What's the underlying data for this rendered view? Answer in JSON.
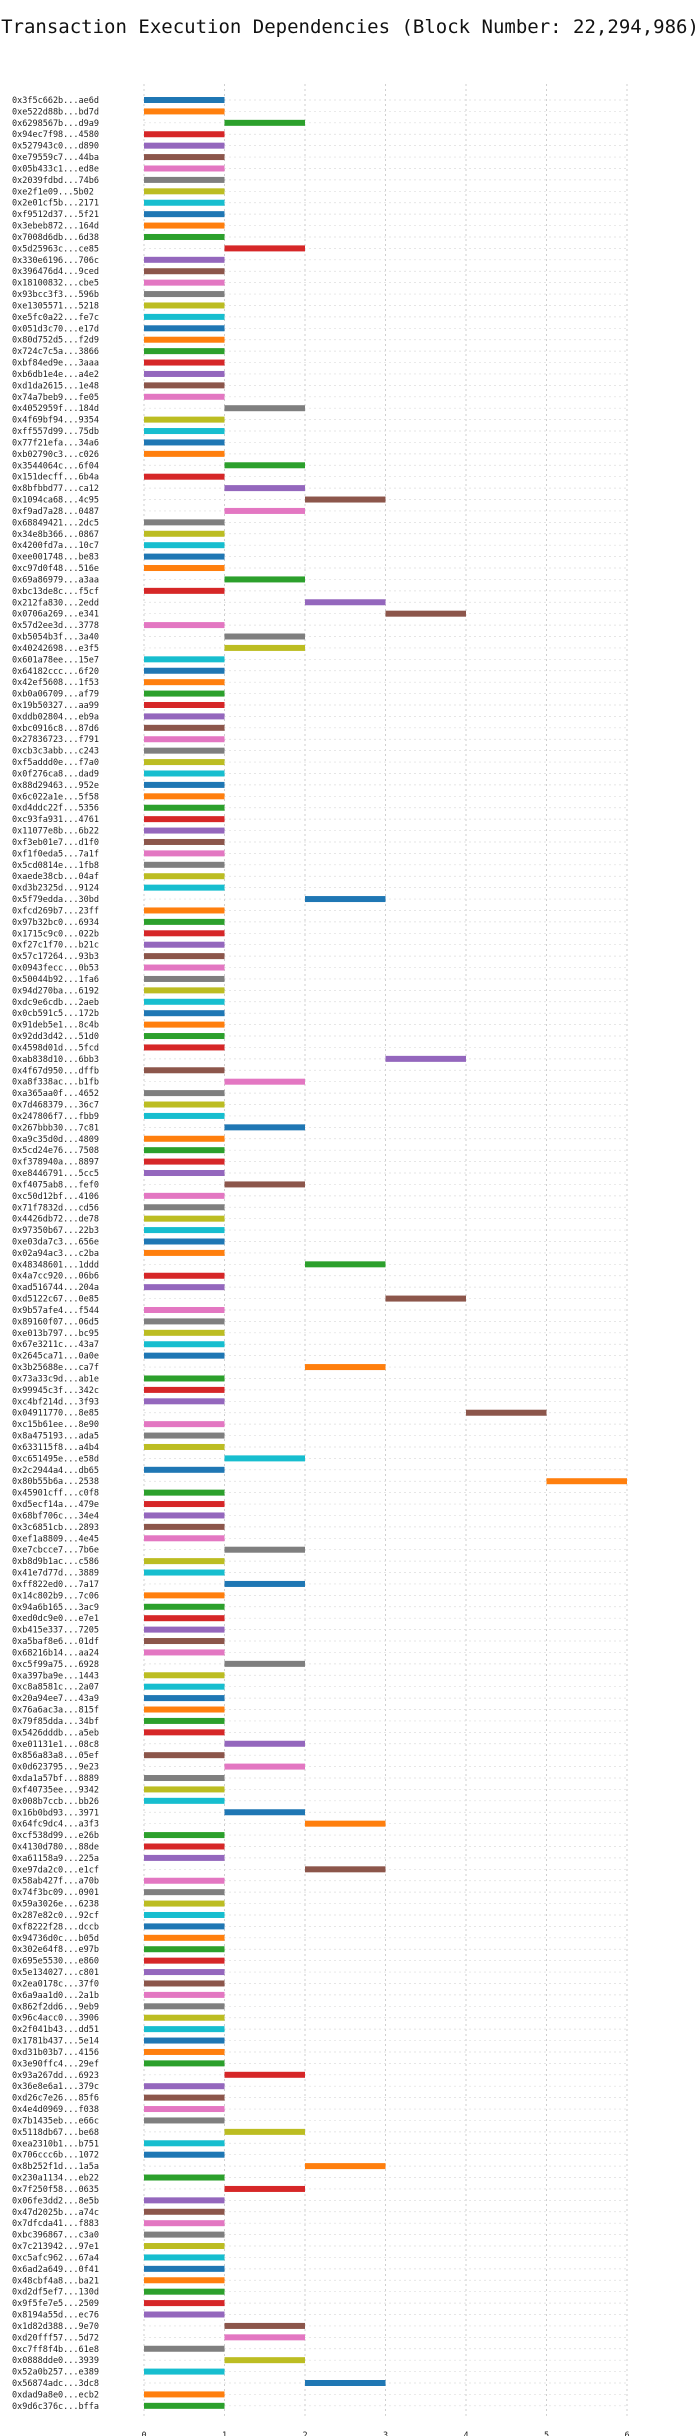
{
  "chart_data": {
    "type": "bar",
    "orientation": "horizontal-gantt",
    "title": "Transaction Execution Dependencies (Block Number: 22,294,986)",
    "xlabel": "",
    "ylabel": "",
    "xlim": [
      0,
      6
    ],
    "x_ticks": [
      "0",
      "1",
      "2",
      "3",
      "4",
      "5",
      "6"
    ],
    "grid": true,
    "legend": "none",
    "palette": [
      "#1f77b4",
      "#ff7f0e",
      "#2ca02c",
      "#d62728",
      "#9467bd",
      "#8c564b",
      "#e377c2",
      "#7f7f7f",
      "#bcbd22",
      "#17becf"
    ],
    "categories": [
      "0x3f5c662b...ae6d",
      "0xe522d88b...bd7d",
      "0x6298567b...d9a9",
      "0x94ec7f98...4580",
      "0x527943c0...d890",
      "0xe79559c7...44ba",
      "0x05b433c1...ed8e",
      "0x2039fdbd...74b6",
      "0xe2f1e09...5b02",
      "0x2e01cf5b...2171",
      "0xf9512d37...5f21",
      "0x3ebeb872...164d",
      "0x7008d6db...6d38",
      "0x5d25963c...ce85",
      "0x330e6196...706c",
      "0x396476d4...9ced",
      "0x18100832...cbe5",
      "0x93bcc3f3...596b",
      "0xe1305571...5218",
      "0xe5fc0a22...fe7c",
      "0x051d3c70...e17d",
      "0x80d752d5...f2d9",
      "0x724c7c5a...3866",
      "0xbf84ed9e...3aaa",
      "0xb6db1e4e...a4e2",
      "0xd1da2615...1e48",
      "0x74a7beb9...fe05",
      "0x4052959f...184d",
      "0x4f69bf94...9354",
      "0xff557d99...75db",
      "0x77f21efa...34a6",
      "0xb02790c3...c026",
      "0x3544064c...6f04",
      "0x151decff...6b4a",
      "0x8bfbbd77...ca12",
      "0x1094ca68...4c95",
      "0xf9ad7a28...0487",
      "0x68849421...2dc5",
      "0x34e8b366...0867",
      "0x4200fd7a...10c7",
      "0xee001748...be83",
      "0xc97d0f48...516e",
      "0x69a86979...a3aa",
      "0xbc13de8c...f5cf",
      "0x212fa830...2edd",
      "0x0706a269...e341",
      "0x57d2ee3d...3778",
      "0xb5054b3f...3a40",
      "0x40242698...e3f5",
      "0x601a78ee...15e7",
      "0x64182ccc...6f20",
      "0x42ef5608...1f53",
      "0xb0a06709...af79",
      "0x19b50327...aa99",
      "0xddb02804...eb9a",
      "0xbc0916c8...87d6",
      "0x27836723...f791",
      "0xcb3c3abb...c243",
      "0xf5addd0e...f7a0",
      "0x0f276ca8...dad9",
      "0x88d29463...952e",
      "0x6c022a1e...5f58",
      "0xd4ddc22f...5356",
      "0xc93fa931...4761",
      "0x11077e8b...6b22",
      "0xf3eb01e7...d1f0",
      "0xf1f0eda5...7a1f",
      "0x5cd0814e...1fb8",
      "0xaede38cb...04af",
      "0xd3b2325d...9124",
      "0x5f79edda...30bd",
      "0xfcd269b7...23ff",
      "0x97b32bc0...6934",
      "0x1715c9c0...022b",
      "0xf27c1f70...b21c",
      "0x57c17264...93b3",
      "0x0943fecc...0b53",
      "0x50044b92...1fa6",
      "0x94d270ba...6192",
      "0xdc9e6cdb...2aeb",
      "0x0cb591c5...172b",
      "0x91deb5e1...8c4b",
      "0x92dd3d42...51d0",
      "0x4598d01d...5fcd",
      "0xab838d10...6bb3",
      "0x4f67d950...dffb",
      "0xa8f338ac...b1fb",
      "0xa365aa0f...4652",
      "0x7d468379...36c7",
      "0x247806f7...fbb9",
      "0x267bbb30...7c81",
      "0xa9c35d0d...4809",
      "0x5cd24e76...7508",
      "0xf378940a...8897",
      "0xe8446791...5cc5",
      "0xf4075ab8...fef0",
      "0xc50d12bf...4106",
      "0x71f7832d...cd56",
      "0x4426db72...de78",
      "0x97350b67...22b3",
      "0xe03da7c3...656e",
      "0x02a94ac3...c2ba",
      "0x48348601...1ddd",
      "0x4a7cc920...06b6",
      "0xad516744...204a",
      "0xd5122c67...0e85",
      "0x9b57afe4...f544",
      "0x89160f07...06d5",
      "0xe013b797...bc95",
      "0x67e3211c...43a7",
      "0x2645ca71...0a0e",
      "0x3b25688e...ca7f",
      "0x73a33c9d...ab1e",
      "0x99945c3f...342c",
      "0xc4bf214d...3f93",
      "0x04911770...8e85",
      "0xc15b61ee...8e90",
      "0x8a475193...ada5",
      "0x633115f8...a4b4",
      "0xc651495e...e58d",
      "0x2c2944a4...db65",
      "0x80b55b6a...2538",
      "0x45901cff...c0f8",
      "0xd5ecf14a...479e",
      "0x68bf706c...34e4",
      "0x3c6851cb...2893",
      "0xef1a8809...4e45",
      "0xe7cbcce7...7b6e",
      "0xb8d9b1ac...c586",
      "0x41e7d77d...3889",
      "0xff822ed0...7a17",
      "0x14c802b9...7c06",
      "0x94a6b165...3ac9",
      "0xed0dc9e0...e7e1",
      "0xb415e337...7205",
      "0xa5baf8e6...01df",
      "0x68216b14...aa24",
      "0xc5f99a75...6928",
      "0xa397ba9e...1443",
      "0xc8a8581c...2a07",
      "0x20a94ee7...43a9",
      "0x76a6ac3a...815f",
      "0x79f85dda...34bf",
      "0x5426dddb...a5eb",
      "0xe01131e1...08c8",
      "0x856a83a8...05ef",
      "0x0d623795...9e23",
      "0xda1a57bf...8889",
      "0xf40735ee...9342",
      "0x008b7ccb...bb26",
      "0x16b0bd93...3971",
      "0x64fc9dc4...a3f3",
      "0xcf538d99...e26b",
      "0x4130d780...88de",
      "0xa61158a9...225a",
      "0xe97da2c0...e1cf",
      "0x58ab427f...a70b",
      "0x74f3bc09...0901",
      "0x59a3026e...6238",
      "0x287e82c0...92cf",
      "0xf8222f28...dccb",
      "0x94736d0c...b05d",
      "0x302e64f8...e97b",
      "0x695e5530...e860",
      "0x5e134027...c801",
      "0x2ea0178c...37f0",
      "0x6a9aa1d0...2a1b",
      "0x862f2dd6...9eb9",
      "0x96c4acc0...3906",
      "0x2f041b43...dd51",
      "0x1781b437...5e14",
      "0xd31b03b7...4156",
      "0x3e90ffc4...29ef",
      "0x93a267dd...6923",
      "0x36e8e6a1...379c",
      "0xd26c7e26...85f6",
      "0x4e4d0969...f038",
      "0x7b1435eb...e66c",
      "0x5118db67...be68",
      "0xea2310b1...b751",
      "0x706ccc6b...1072",
      "0x8b252f1d...1a5a",
      "0x230a1134...eb22",
      "0x7f250f58...0635",
      "0x06fe3dd2...8e5b",
      "0x47d2025b...a74c",
      "0x7dfcda41...f883",
      "0xbc396867...c3a0",
      "0x7c213942...97e1",
      "0xc5afc962...67a4",
      "0x6ad2a649...0f41",
      "0x48cbf4a8...ba21",
      "0xd2df5ef7...130d",
      "0x9f5fe7e5...2509",
      "0x8194a55d...ec76",
      "0x1d82d388...9e70",
      "0xd20fff57...5d72",
      "0xc7ff8f4b...61e8",
      "0x0888dde0...3939",
      "0x52a0b257...e389",
      "0x56874adc...3dc8",
      "0xdad9a8e0...ecb2",
      "0x9d6c376c...bffa"
    ],
    "starts": [
      0,
      0,
      1,
      0,
      0,
      0,
      0,
      0,
      0,
      0,
      0,
      0,
      0,
      1,
      0,
      0,
      0,
      0,
      0,
      0,
      0,
      0,
      0,
      0,
      0,
      0,
      0,
      1,
      0,
      0,
      0,
      0,
      1,
      0,
      1,
      2,
      1,
      0,
      0,
      0,
      0,
      0,
      1,
      0,
      2,
      3,
      0,
      1,
      1,
      0,
      0,
      0,
      0,
      0,
      0,
      0,
      0,
      0,
      0,
      0,
      0,
      0,
      0,
      0,
      0,
      0,
      0,
      0,
      0,
      0,
      2,
      0,
      0,
      0,
      0,
      0,
      0,
      0,
      0,
      0,
      0,
      0,
      0,
      0,
      3,
      0,
      1,
      0,
      0,
      0,
      1,
      0,
      0,
      0,
      0,
      1,
      0,
      0,
      0,
      0,
      0,
      0,
      2,
      0,
      0,
      3,
      0,
      0,
      0,
      0,
      0,
      2,
      0,
      0,
      0,
      4,
      0,
      0,
      0,
      1,
      0,
      5,
      0,
      0,
      0,
      0,
      0,
      1,
      0,
      0,
      1,
      0,
      0,
      0,
      0,
      0,
      0,
      1,
      0,
      0,
      0,
      0,
      0,
      0,
      1,
      0,
      1,
      0,
      0,
      0,
      1,
      2,
      0,
      0,
      0,
      2,
      0,
      0,
      0,
      0,
      0,
      0,
      0,
      0,
      0,
      0,
      0,
      0,
      0,
      0,
      0,
      0,
      0,
      1,
      0,
      0,
      0,
      0,
      1,
      0,
      0,
      2,
      0,
      1,
      0,
      0,
      0,
      0,
      0,
      0,
      0,
      0,
      0,
      0,
      0,
      1,
      1,
      0,
      1,
      0,
      2,
      0,
      0
    ],
    "durations": "all 1",
    "colors": [
      "#1f77b4",
      "#ff7f0e",
      "#2ca02c",
      "#d62728",
      "#9467bd",
      "#8c564b",
      "#e377c2",
      "#7f7f7f",
      "#bcbd22",
      "#17becf",
      "#1f77b4",
      "#ff7f0e",
      "#2ca02c",
      "#d62728",
      "#9467bd",
      "#8c564b",
      "#e377c2",
      "#7f7f7f",
      "#bcbd22",
      "#17becf",
      "#1f77b4",
      "#ff7f0e",
      "#2ca02c",
      "#d62728",
      "#9467bd",
      "#8c564b",
      "#e377c2",
      "#7f7f7f",
      "#bcbd22",
      "#17becf",
      "#1f77b4",
      "#ff7f0e",
      "#2ca02c",
      "#d62728",
      "#9467bd",
      "#8c564b",
      "#e377c2",
      "#7f7f7f",
      "#bcbd22",
      "#17becf",
      "#1f77b4",
      "#ff7f0e",
      "#2ca02c",
      "#d62728",
      "#9467bd",
      "#8c564b",
      "#e377c2",
      "#7f7f7f",
      "#bcbd22",
      "#17becf",
      "#1f77b4",
      "#ff7f0e",
      "#2ca02c",
      "#d62728",
      "#9467bd",
      "#8c564b",
      "#e377c2",
      "#7f7f7f",
      "#bcbd22",
      "#17becf",
      "#1f77b4",
      "#ff7f0e",
      "#2ca02c",
      "#d62728",
      "#9467bd",
      "#8c564b",
      "#e377c2",
      "#7f7f7f",
      "#bcbd22",
      "#17becf",
      "#1f77b4",
      "#ff7f0e",
      "#2ca02c",
      "#d62728",
      "#9467bd",
      "#8c564b",
      "#e377c2",
      "#7f7f7f",
      "#bcbd22",
      "#17becf",
      "#1f77b4",
      "#ff7f0e",
      "#2ca02c",
      "#d62728",
      "#9467bd",
      "#8c564b",
      "#e377c2",
      "#7f7f7f",
      "#bcbd22",
      "#17becf",
      "#1f77b4",
      "#ff7f0e",
      "#2ca02c",
      "#d62728",
      "#9467bd",
      "#8c564b",
      "#e377c2",
      "#7f7f7f",
      "#bcbd22",
      "#17becf",
      "#1f77b4",
      "#ff7f0e",
      "#2ca02c",
      "#d62728",
      "#9467bd",
      "#8c564b",
      "#e377c2",
      "#7f7f7f",
      "#bcbd22",
      "#17becf",
      "#1f77b4",
      "#ff7f0e",
      "#2ca02c",
      "#d62728",
      "#9467bd",
      "#8c564b",
      "#e377c2",
      "#7f7f7f",
      "#bcbd22",
      "#17becf",
      "#1f77b4",
      "#ff7f0e",
      "#2ca02c",
      "#d62728",
      "#9467bd",
      "#8c564b",
      "#e377c2",
      "#7f7f7f",
      "#bcbd22",
      "#17becf",
      "#1f77b4",
      "#ff7f0e",
      "#2ca02c",
      "#d62728",
      "#9467bd",
      "#8c564b",
      "#e377c2",
      "#7f7f7f",
      "#bcbd22",
      "#17becf",
      "#1f77b4",
      "#ff7f0e",
      "#2ca02c",
      "#d62728",
      "#9467bd",
      "#8c564b",
      "#e377c2",
      "#7f7f7f",
      "#bcbd22",
      "#17becf",
      "#1f77b4",
      "#ff7f0e",
      "#2ca02c",
      "#d62728",
      "#9467bd",
      "#8c564b",
      "#e377c2",
      "#7f7f7f",
      "#bcbd22",
      "#17becf",
      "#1f77b4",
      "#ff7f0e",
      "#2ca02c",
      "#d62728",
      "#9467bd",
      "#8c564b",
      "#e377c2",
      "#7f7f7f",
      "#bcbd22",
      "#17becf",
      "#1f77b4",
      "#ff7f0e",
      "#2ca02c",
      "#d62728",
      "#9467bd",
      "#8c564b",
      "#e377c2",
      "#7f7f7f",
      "#bcbd22",
      "#17becf",
      "#1f77b4",
      "#ff7f0e",
      "#2ca02c",
      "#d62728",
      "#9467bd",
      "#8c564b",
      "#e377c2",
      "#7f7f7f",
      "#bcbd22",
      "#17becf",
      "#1f77b4",
      "#ff7f0e",
      "#2ca02c",
      "#d62728",
      "#9467bd",
      "#8c564b",
      "#e377c2",
      "#7f7f7f",
      "#bcbd22",
      "#17becf",
      "#1f77b4",
      "#ff7f0e",
      "#2ca02c"
    ]
  }
}
